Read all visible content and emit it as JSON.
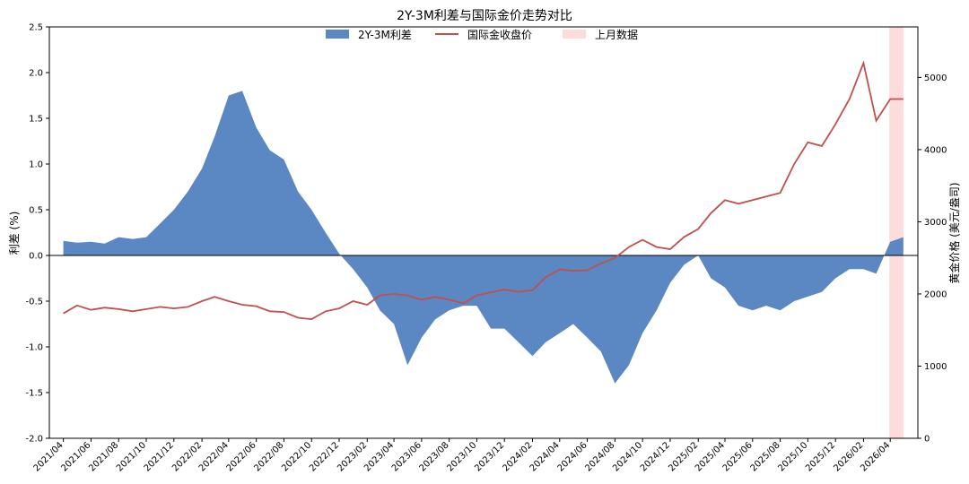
{
  "chart_data": {
    "type": "area",
    "title": "2Y-3M利差与国际金价走势对比",
    "ylabel_left": "利差 (%)",
    "ylabel_right": "黄金价格 (美元/盎司)",
    "ylim_left": [
      -2.0,
      2.5
    ],
    "ylim_right": [
      0,
      5700
    ],
    "yticks_left": [
      "-2.0",
      "-1.5",
      "-1.0",
      "-0.5",
      "0.0",
      "0.5",
      "1.0",
      "1.5",
      "2.0",
      "2.5"
    ],
    "yticks_right": [
      "0",
      "1000",
      "2000",
      "3000",
      "4000",
      "5000"
    ],
    "xlim": [
      "2021-03",
      "2026-06"
    ],
    "xticks": [
      "2021/04",
      "2021/06",
      "2021/08",
      "2021/10",
      "2021/12",
      "2022/02",
      "2022/04",
      "2022/06",
      "2022/08",
      "2022/10",
      "2022/12",
      "2023/02",
      "2023/04",
      "2023/06",
      "2023/08",
      "2023/10",
      "2023/12",
      "2024/02",
      "2024/04",
      "2024/06",
      "2024/08",
      "2024/10",
      "2024/12",
      "2025/02",
      "2025/04",
      "2025/06",
      "2025/08",
      "2025/10",
      "2025/12",
      "2026/02",
      "2026/04"
    ],
    "legend_placement": "top-center",
    "grid": false,
    "highlight": {
      "name": "上月数据",
      "from": "2026-03-30",
      "to": "2026-04-30",
      "color": "#ffdcdc"
    },
    "series": [
      {
        "name": "2Y-3M利差",
        "kind": "area",
        "color": "#5b87c2",
        "x": [
          "2021-04-01",
          "2021-05-01",
          "2021-06-01",
          "2021-07-01",
          "2021-08-01",
          "2021-09-01",
          "2021-10-01",
          "2021-11-01",
          "2021-12-01",
          "2022-01-01",
          "2022-02-01",
          "2022-03-01",
          "2022-04-01",
          "2022-05-01",
          "2022-06-01",
          "2022-07-01",
          "2022-08-01",
          "2022-09-01",
          "2022-10-01",
          "2022-11-01",
          "2022-12-01",
          "2023-01-01",
          "2023-02-01",
          "2023-03-01",
          "2023-04-01",
          "2023-05-01",
          "2023-06-01",
          "2023-07-01",
          "2023-08-01",
          "2023-09-01",
          "2023-10-01",
          "2023-11-01",
          "2023-12-01",
          "2024-01-01",
          "2024-02-01",
          "2024-03-01",
          "2024-04-01",
          "2024-05-01",
          "2024-06-01",
          "2024-07-01",
          "2024-08-01",
          "2024-09-01",
          "2024-10-01",
          "2024-11-01",
          "2024-12-01",
          "2025-01-01",
          "2025-02-01",
          "2025-03-01",
          "2025-04-01",
          "2025-05-01",
          "2025-06-01",
          "2025-07-01",
          "2025-08-01",
          "2025-09-01",
          "2025-10-01",
          "2025-11-01",
          "2025-12-01",
          "2026-01-01",
          "2026-02-01",
          "2026-03-01",
          "2026-04-01",
          "2026-04-30"
        ],
        "values": [
          0.16,
          0.14,
          0.15,
          0.13,
          0.2,
          0.18,
          0.2,
          0.35,
          0.5,
          0.7,
          0.95,
          1.3,
          1.75,
          1.8,
          1.4,
          1.15,
          1.05,
          0.7,
          0.5,
          0.25,
          0.02,
          -0.15,
          -0.35,
          -0.6,
          -0.75,
          -1.2,
          -0.9,
          -0.7,
          -0.6,
          -0.55,
          -0.55,
          -0.8,
          -0.8,
          -0.95,
          -1.1,
          -0.95,
          -0.85,
          -0.75,
          -0.9,
          -1.05,
          -1.4,
          -1.2,
          -0.85,
          -0.6,
          -0.3,
          -0.1,
          0.0,
          -0.25,
          -0.35,
          -0.55,
          -0.6,
          -0.55,
          -0.6,
          -0.5,
          -0.45,
          -0.4,
          -0.25,
          -0.15,
          -0.15,
          -0.2,
          0.15,
          0.2
        ]
      },
      {
        "name": "国际金收盘价",
        "kind": "line",
        "axis": "right",
        "color": "#c0504d",
        "x": [
          "2021-04-01",
          "2021-05-01",
          "2021-06-01",
          "2021-07-01",
          "2021-08-01",
          "2021-09-01",
          "2021-10-01",
          "2021-11-01",
          "2021-12-01",
          "2022-01-01",
          "2022-02-01",
          "2022-03-01",
          "2022-04-01",
          "2022-05-01",
          "2022-06-01",
          "2022-07-01",
          "2022-08-01",
          "2022-09-01",
          "2022-10-01",
          "2022-11-01",
          "2022-12-01",
          "2023-01-01",
          "2023-02-01",
          "2023-03-01",
          "2023-04-01",
          "2023-05-01",
          "2023-06-01",
          "2023-07-01",
          "2023-08-01",
          "2023-09-01",
          "2023-10-01",
          "2023-11-01",
          "2023-12-01",
          "2024-01-01",
          "2024-02-01",
          "2024-03-01",
          "2024-04-01",
          "2024-05-01",
          "2024-06-01",
          "2024-07-01",
          "2024-08-01",
          "2024-09-01",
          "2024-10-01",
          "2024-11-01",
          "2024-12-01",
          "2025-01-01",
          "2025-02-01",
          "2025-03-01",
          "2025-04-01",
          "2025-05-01",
          "2025-06-01",
          "2025-07-01",
          "2025-08-01",
          "2025-09-01",
          "2025-10-01",
          "2025-11-01",
          "2025-12-01",
          "2026-01-01",
          "2026-02-01",
          "2026-03-01",
          "2026-04-01",
          "2026-04-30"
        ],
        "values": [
          1730,
          1840,
          1780,
          1810,
          1790,
          1760,
          1790,
          1820,
          1800,
          1820,
          1900,
          1960,
          1900,
          1850,
          1830,
          1760,
          1750,
          1670,
          1650,
          1760,
          1800,
          1900,
          1850,
          1980,
          2000,
          1980,
          1920,
          1960,
          1920,
          1870,
          1980,
          2020,
          2060,
          2030,
          2050,
          2230,
          2340,
          2320,
          2330,
          2420,
          2500,
          2650,
          2750,
          2650,
          2620,
          2790,
          2900,
          3120,
          3300,
          3250,
          3300,
          3350,
          3400,
          3800,
          4100,
          4050,
          4350,
          4700,
          5200,
          4400,
          4700,
          4700
        ]
      }
    ]
  }
}
